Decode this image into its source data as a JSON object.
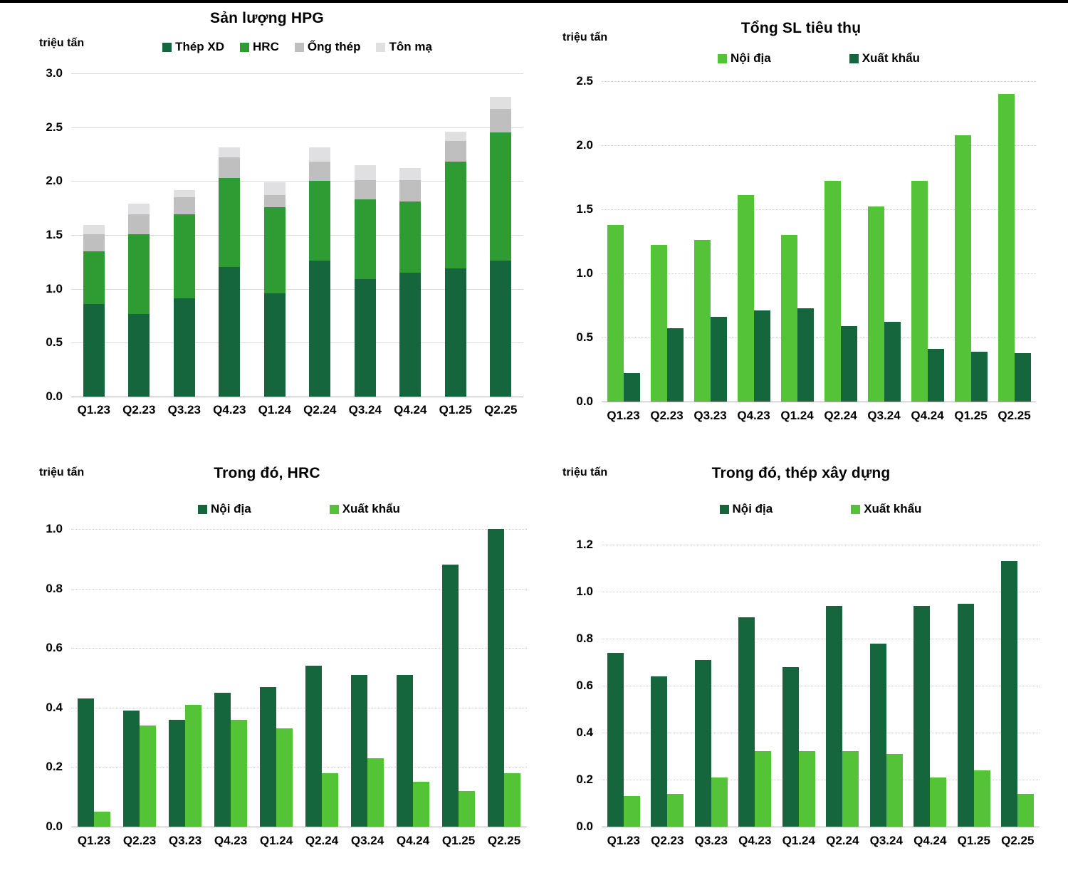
{
  "page": {
    "background": "#ffffff",
    "top_border_color": "#000000",
    "unit_label": "triệu tấn"
  },
  "colors": {
    "dark_green": "#15663C",
    "medium_green": "#2E9B33",
    "light_green": "#55C338",
    "gray": "#BFBFBF",
    "light_gray": "#E0E0E2",
    "gridline": "#D9D9D9",
    "axis_line": "#B0B0B0",
    "text": "#000000"
  },
  "chart_data": [
    {
      "id": "production",
      "type": "bar-stacked",
      "title": "Sản lượng HPG",
      "unit_label": "triệu tấn",
      "categories": [
        "Q1.23",
        "Q2.23",
        "Q3.23",
        "Q4.23",
        "Q1.24",
        "Q2.24",
        "Q3.24",
        "Q4.24",
        "Q1.25",
        "Q2.25"
      ],
      "series": [
        {
          "name": "Thép XD",
          "color": "#15663C",
          "values": [
            0.86,
            0.77,
            0.91,
            1.2,
            0.96,
            1.26,
            1.09,
            1.15,
            1.19,
            1.26
          ]
        },
        {
          "name": "HRC",
          "color": "#2E9B33",
          "values": [
            0.49,
            0.74,
            0.78,
            0.83,
            0.8,
            0.74,
            0.74,
            0.66,
            0.99,
            1.19
          ]
        },
        {
          "name": "Ống thép",
          "color": "#BFBFBF",
          "values": [
            0.16,
            0.18,
            0.16,
            0.19,
            0.11,
            0.18,
            0.18,
            0.2,
            0.19,
            0.22
          ]
        },
        {
          "name": "Tôn mạ",
          "color": "#E0E0E2",
          "values": [
            0.08,
            0.1,
            0.07,
            0.09,
            0.12,
            0.13,
            0.14,
            0.11,
            0.09,
            0.11
          ]
        }
      ],
      "xlabel": "",
      "ylabel": "triệu tấn",
      "ylim": [
        0,
        3.0
      ],
      "ytick_step": 0.5,
      "grid_style": "solid",
      "legend_position": "top"
    },
    {
      "id": "total-consumption",
      "type": "bar-grouped",
      "title": "Tổng SL tiêu thụ",
      "unit_label": "triệu tấn",
      "categories": [
        "Q1.23",
        "Q2.23",
        "Q3.23",
        "Q4.23",
        "Q1.24",
        "Q2.24",
        "Q3.24",
        "Q4.24",
        "Q1.25",
        "Q2.25"
      ],
      "series": [
        {
          "name": "Nội địa",
          "color": "#55C338",
          "values": [
            1.38,
            1.22,
            1.26,
            1.61,
            1.3,
            1.72,
            1.52,
            1.72,
            2.08,
            2.4
          ]
        },
        {
          "name": "Xuất khẩu",
          "color": "#15663C",
          "values": [
            0.22,
            0.57,
            0.66,
            0.71,
            0.73,
            0.59,
            0.62,
            0.41,
            0.39,
            0.38
          ]
        }
      ],
      "xlabel": "",
      "ylabel": "triệu tấn",
      "ylim": [
        0,
        2.5
      ],
      "ytick_step": 0.5,
      "grid_style": "dotted",
      "legend_position": "top"
    },
    {
      "id": "hrc",
      "type": "bar-grouped",
      "title": "Trong đó, HRC",
      "unit_label": "triệu tấn",
      "categories": [
        "Q1.23",
        "Q2.23",
        "Q3.23",
        "Q4.23",
        "Q1.24",
        "Q2.24",
        "Q3.24",
        "Q4.24",
        "Q1.25",
        "Q2.25"
      ],
      "series": [
        {
          "name": "Nội địa",
          "color": "#15663C",
          "values": [
            0.43,
            0.39,
            0.36,
            0.45,
            0.47,
            0.54,
            0.51,
            0.51,
            0.88,
            1.0
          ]
        },
        {
          "name": "Xuất khẩu",
          "color": "#55C338",
          "values": [
            0.05,
            0.34,
            0.41,
            0.36,
            0.33,
            0.18,
            0.23,
            0.15,
            0.12,
            0.18
          ]
        }
      ],
      "xlabel": "",
      "ylabel": "triệu tấn",
      "ylim": [
        0,
        1.0
      ],
      "ytick_step": 0.2,
      "grid_style": "dotted",
      "legend_position": "top"
    },
    {
      "id": "construction-steel",
      "type": "bar-grouped",
      "title": "Trong đó, thép xây dựng",
      "unit_label": "triệu tấn",
      "categories": [
        "Q1.23",
        "Q2.23",
        "Q3.23",
        "Q4.23",
        "Q1.24",
        "Q2.24",
        "Q3.24",
        "Q4.24",
        "Q1.25",
        "Q2.25"
      ],
      "series": [
        {
          "name": "Nội địa",
          "color": "#15663C",
          "values": [
            0.74,
            0.64,
            0.71,
            0.89,
            0.68,
            0.94,
            0.78,
            0.94,
            0.95,
            1.13
          ]
        },
        {
          "name": "Xuất khẩu",
          "color": "#55C338",
          "values": [
            0.13,
            0.14,
            0.21,
            0.32,
            0.32,
            0.32,
            0.31,
            0.21,
            0.24,
            0.14
          ]
        }
      ],
      "xlabel": "",
      "ylabel": "triệu tấn",
      "ylim": [
        0,
        1.2
      ],
      "ytick_step": 0.2,
      "grid_style": "dotted",
      "legend_position": "top"
    }
  ]
}
